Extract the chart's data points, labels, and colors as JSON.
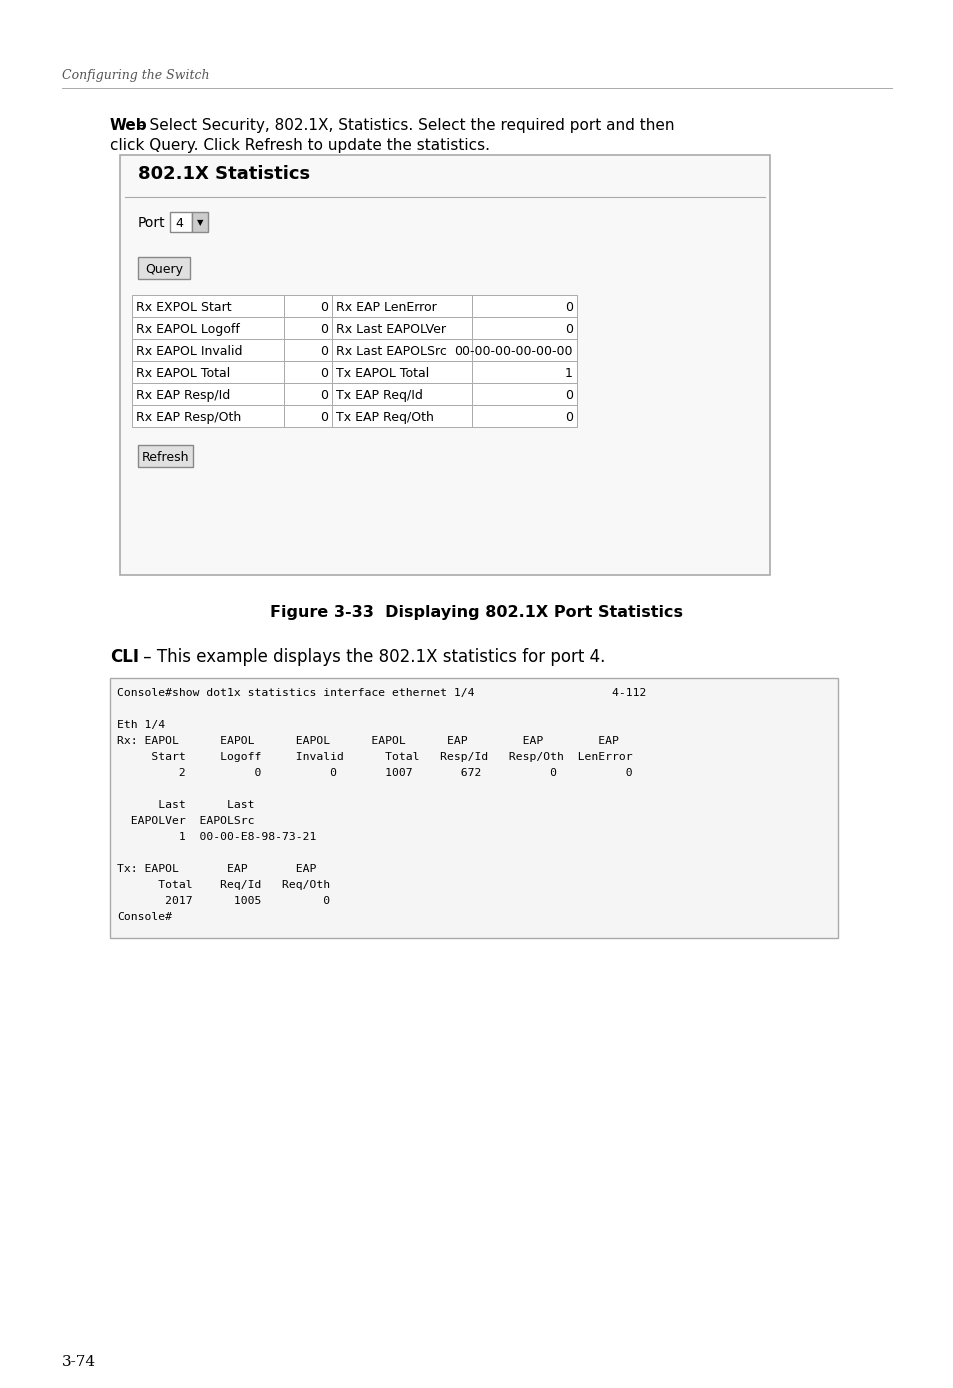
{
  "page_header": "Configuring the Switch",
  "page_number": "3-74",
  "web_text_bold": "Web",
  "web_text_normal": " – Select Security, 802.1X, Statistics. Select the required port and then",
  "web_text_line2": "click Query. Click Refresh to update the statistics.",
  "panel_title": "802.1X Statistics",
  "port_label": "Port",
  "port_value": "4",
  "query_button": "Query",
  "refresh_button": "Refresh",
  "table_rows": [
    [
      "Rx EXPOL Start",
      "0",
      "Rx EAP LenError",
      "0"
    ],
    [
      "Rx EAPOL Logoff",
      "0",
      "Rx Last EAPOLVer",
      "0"
    ],
    [
      "Rx EAPOL Invalid",
      "0",
      "Rx Last EAPOLSrc",
      "00-00-00-00-00-00"
    ],
    [
      "Rx EAPOL Total",
      "0",
      "Tx EAPOL Total",
      "1"
    ],
    [
      "Rx EAP Resp/Id",
      "0",
      "Tx EAP Req/Id",
      "0"
    ],
    [
      "Rx EAP Resp/Oth",
      "0",
      "Tx EAP Req/Oth",
      "0"
    ]
  ],
  "figure_caption": "Figure 3-33  Displaying 802.1X Port Statistics",
  "cli_bold": "CLI",
  "cli_normal": " – This example displays the 802.1X statistics for port 4.",
  "cli_lines": [
    "Console#show dot1x statistics interface ethernet 1/4                    4-112",
    "",
    "Eth 1/4",
    "Rx: EAPOL      EAPOL      EAPOL      EAPOL      EAP        EAP        EAP",
    "     Start     Logoff     Invalid      Total   Resp/Id   Resp/Oth  LenError",
    "         2          0          0       1007       672          0          0",
    "",
    "      Last      Last",
    "  EAPOLVer  EAPOLSrc",
    "         1  00-00-E8-98-73-21",
    "",
    "Tx: EAPOL       EAP       EAP",
    "      Total    Req/Id   Req/Oth",
    "       2017      1005         0",
    "Console#"
  ],
  "bg_color": "#ffffff"
}
